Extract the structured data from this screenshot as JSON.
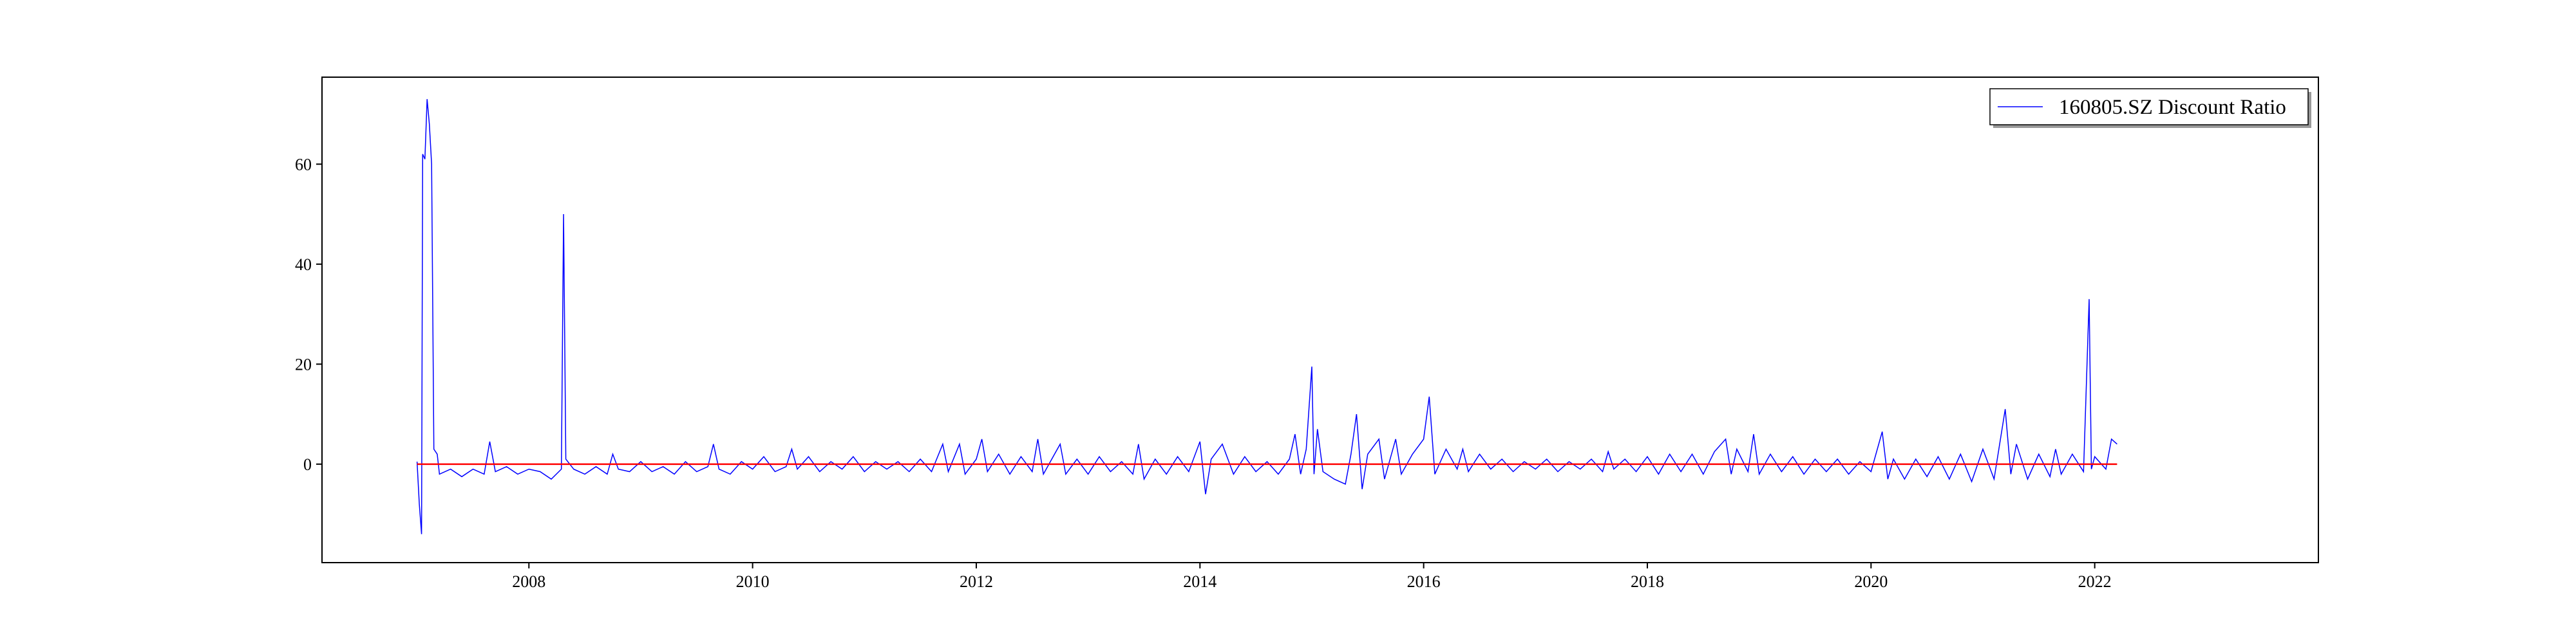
{
  "chart_data": {
    "type": "line",
    "xlim": [
      2006.15,
      2024.0
    ],
    "ylim": [
      -19.7,
      77.4
    ],
    "xticks": [
      2008,
      2010,
      2012,
      2014,
      2016,
      2018,
      2020,
      2022
    ],
    "yticks": [
      0,
      20,
      40,
      60
    ],
    "legend": "upper right",
    "hline": {
      "value": 0,
      "color": "#ff0000",
      "x": [
        2007.0,
        2022.2
      ]
    },
    "series": [
      {
        "name": "160805.SZ Discount Ratio",
        "color": "#0000ff",
        "x": [
          2007.0,
          2007.02,
          2007.04,
          2007.05,
          2007.07,
          2007.09,
          2007.11,
          2007.13,
          2007.15,
          2007.18,
          2007.2,
          2007.3,
          2007.4,
          2007.5,
          2007.6,
          2007.65,
          2007.7,
          2007.8,
          2007.9,
          2008.0,
          2008.1,
          2008.2,
          2008.29,
          2008.31,
          2008.33,
          2008.4,
          2008.5,
          2008.6,
          2008.7,
          2008.75,
          2008.8,
          2008.9,
          2009.0,
          2009.1,
          2009.2,
          2009.3,
          2009.4,
          2009.5,
          2009.6,
          2009.65,
          2009.7,
          2009.8,
          2009.9,
          2010.0,
          2010.1,
          2010.2,
          2010.3,
          2010.35,
          2010.4,
          2010.5,
          2010.6,
          2010.7,
          2010.8,
          2010.9,
          2011.0,
          2011.1,
          2011.2,
          2011.3,
          2011.4,
          2011.5,
          2011.6,
          2011.7,
          2011.75,
          2011.85,
          2011.9,
          2012.0,
          2012.05,
          2012.1,
          2012.2,
          2012.3,
          2012.4,
          2012.5,
          2012.55,
          2012.6,
          2012.7,
          2012.75,
          2012.8,
          2012.9,
          2013.0,
          2013.1,
          2013.2,
          2013.3,
          2013.4,
          2013.45,
          2013.5,
          2013.6,
          2013.7,
          2013.8,
          2013.9,
          2014.0,
          2014.05,
          2014.1,
          2014.2,
          2014.3,
          2014.4,
          2014.5,
          2014.6,
          2014.7,
          2014.8,
          2014.85,
          2014.9,
          2014.95,
          2015.0,
          2015.02,
          2015.05,
          2015.1,
          2015.2,
          2015.3,
          2015.35,
          2015.4,
          2015.45,
          2015.5,
          2015.6,
          2015.65,
          2015.75,
          2015.8,
          2015.9,
          2016.0,
          2016.05,
          2016.1,
          2016.2,
          2016.3,
          2016.35,
          2016.4,
          2016.5,
          2016.6,
          2016.7,
          2016.8,
          2016.9,
          2017.0,
          2017.1,
          2017.2,
          2017.3,
          2017.4,
          2017.5,
          2017.6,
          2017.65,
          2017.7,
          2017.8,
          2017.9,
          2018.0,
          2018.1,
          2018.2,
          2018.3,
          2018.4,
          2018.5,
          2018.6,
          2018.7,
          2018.75,
          2018.8,
          2018.9,
          2018.95,
          2019.0,
          2019.1,
          2019.2,
          2019.3,
          2019.4,
          2019.5,
          2019.6,
          2019.7,
          2019.8,
          2019.9,
          2020.0,
          2020.1,
          2020.15,
          2020.2,
          2020.3,
          2020.4,
          2020.5,
          2020.6,
          2020.7,
          2020.8,
          2020.9,
          2021.0,
          2021.1,
          2021.2,
          2021.25,
          2021.3,
          2021.4,
          2021.5,
          2021.6,
          2021.65,
          2021.7,
          2021.8,
          2021.9,
          2021.95,
          2021.97,
          2022.0,
          2022.1,
          2022.15,
          2022.2
        ],
        "values": [
          0.5,
          -8,
          -14,
          62,
          61,
          73,
          68,
          60,
          3,
          2,
          -2,
          -1,
          -2.5,
          -1,
          -2,
          4.5,
          -1.5,
          -0.5,
          -2,
          -1,
          -1.5,
          -3,
          -1,
          50,
          1,
          -1,
          -2,
          -0.5,
          -2,
          2,
          -1,
          -1.5,
          0.5,
          -1.5,
          -0.5,
          -2,
          0.5,
          -1.5,
          -0.5,
          4,
          -1,
          -2,
          0.5,
          -1,
          1.5,
          -1.5,
          -0.5,
          3,
          -1,
          1.5,
          -1.5,
          0.5,
          -1,
          1.5,
          -1.5,
          0.5,
          -1,
          0.5,
          -1.5,
          1,
          -1.5,
          4,
          -1.5,
          4,
          -2,
          1,
          5,
          -1.5,
          2,
          -2,
          1.5,
          -1.5,
          5,
          -2,
          2,
          4,
          -2,
          1,
          -2,
          1.5,
          -1.5,
          0.5,
          -2,
          4,
          -3,
          1,
          -2,
          1.5,
          -1.5,
          4.5,
          -6,
          1,
          4,
          -2,
          1.5,
          -1.5,
          0.5,
          -2,
          1,
          6,
          -2,
          3,
          19.5,
          -2,
          7,
          -1.5,
          -3,
          -4,
          2,
          10,
          -5,
          2,
          5,
          -3,
          5,
          -2,
          2,
          5,
          13.5,
          -2,
          3,
          -1,
          3,
          -1.5,
          2,
          -1,
          1,
          -1.5,
          0.5,
          -1,
          1,
          -1.5,
          0.5,
          -1,
          1,
          -1.5,
          2.5,
          -1,
          1,
          -1.5,
          1.5,
          -2,
          2,
          -1.5,
          2,
          -2,
          2.5,
          5,
          -2,
          3,
          -1.5,
          6,
          -2,
          2,
          -1.5,
          1.5,
          -2,
          1,
          -1.5,
          1,
          -2,
          0.5,
          -1.5,
          6.5,
          -3,
          1,
          -3,
          1,
          -2.5,
          1.5,
          -3,
          2,
          -3.5,
          3,
          -3,
          11,
          -2,
          4,
          -3,
          2,
          -2.5,
          3,
          -2,
          2,
          -1.5,
          33,
          -1,
          1.5,
          -1,
          5,
          4
        ]
      }
    ]
  }
}
